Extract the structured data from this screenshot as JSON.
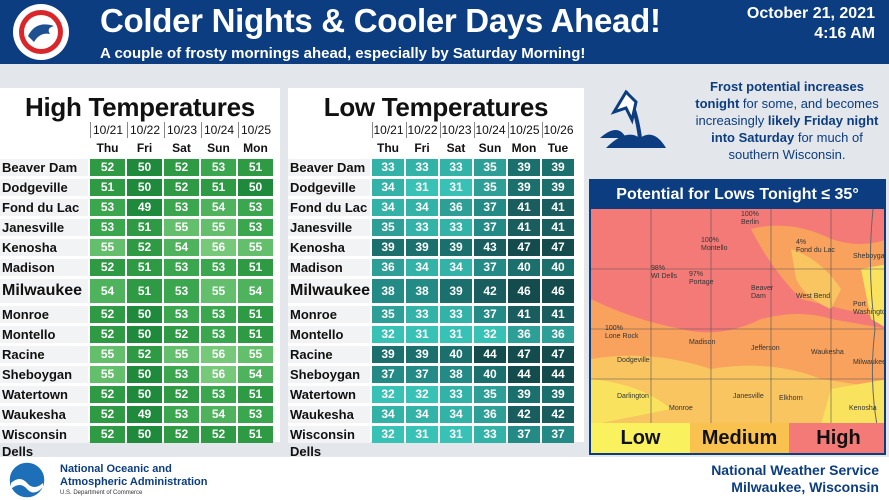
{
  "header": {
    "title": "Colder Nights & Cooler Days Ahead!",
    "subtitle": "A couple of frosty mornings ahead, especially by Saturday Morning!",
    "date": "October 21, 2021",
    "time": "4:16 AM",
    "logo_text": "NATIONAL WEATHER SERVICE"
  },
  "high": {
    "title": "High Temperatures",
    "dates": [
      "10/21",
      "10/22",
      "10/23",
      "10/24",
      "10/25"
    ],
    "days": [
      "Thu",
      "Fri",
      "Sat",
      "Sun",
      "Mon"
    ],
    "rows": [
      {
        "city": "Beaver Dam",
        "v": [
          52,
          50,
          52,
          53,
          51
        ]
      },
      {
        "city": "Dodgeville",
        "v": [
          51,
          50,
          52,
          51,
          50
        ]
      },
      {
        "city": "Fond du Lac",
        "v": [
          53,
          49,
          53,
          54,
          53
        ]
      },
      {
        "city": "Janesville",
        "v": [
          53,
          51,
          55,
          55,
          53
        ]
      },
      {
        "city": "Kenosha",
        "v": [
          55,
          52,
          54,
          56,
          55
        ]
      },
      {
        "city": "Madison",
        "v": [
          52,
          51,
          53,
          53,
          51
        ]
      },
      {
        "city": "Milwaukee",
        "v": [
          54,
          51,
          53,
          55,
          54
        ]
      },
      {
        "city": "Monroe",
        "v": [
          52,
          50,
          53,
          53,
          51
        ]
      },
      {
        "city": "Montello",
        "v": [
          52,
          50,
          52,
          53,
          51
        ]
      },
      {
        "city": "Racine",
        "v": [
          55,
          52,
          55,
          56,
          55
        ]
      },
      {
        "city": "Sheboygan",
        "v": [
          55,
          50,
          53,
          56,
          54
        ]
      },
      {
        "city": "Watertown",
        "v": [
          52,
          50,
          52,
          53,
          51
        ]
      },
      {
        "city": "Waukesha",
        "v": [
          52,
          49,
          53,
          54,
          53
        ]
      },
      {
        "city": "Wisconsin Dells",
        "v": [
          52,
          50,
          52,
          52,
          51
        ]
      }
    ]
  },
  "low": {
    "title": "Low Temperatures",
    "dates": [
      "10/21",
      "10/22",
      "10/23",
      "10/24",
      "10/25",
      "10/26"
    ],
    "days": [
      "Thu",
      "Fri",
      "Sat",
      "Sun",
      "Mon",
      "Tue"
    ],
    "rows": [
      {
        "city": "Beaver Dam",
        "v": [
          33,
          33,
          33,
          35,
          39,
          39
        ]
      },
      {
        "city": "Dodgeville",
        "v": [
          34,
          31,
          31,
          35,
          39,
          39
        ]
      },
      {
        "city": "Fond du Lac",
        "v": [
          34,
          34,
          36,
          37,
          41,
          41
        ]
      },
      {
        "city": "Janesville",
        "v": [
          35,
          33,
          33,
          37,
          41,
          41
        ]
      },
      {
        "city": "Kenosha",
        "v": [
          39,
          39,
          39,
          43,
          47,
          47
        ]
      },
      {
        "city": "Madison",
        "v": [
          36,
          34,
          34,
          37,
          40,
          40
        ]
      },
      {
        "city": "Milwaukee",
        "v": [
          38,
          38,
          39,
          42,
          46,
          46
        ]
      },
      {
        "city": "Monroe",
        "v": [
          35,
          33,
          33,
          37,
          41,
          41
        ]
      },
      {
        "city": "Montello",
        "v": [
          32,
          31,
          31,
          32,
          36,
          36
        ]
      },
      {
        "city": "Racine",
        "v": [
          39,
          39,
          40,
          44,
          47,
          47
        ]
      },
      {
        "city": "Sheboygan",
        "v": [
          37,
          37,
          38,
          40,
          44,
          44
        ]
      },
      {
        "city": "Watertown",
        "v": [
          32,
          32,
          33,
          35,
          39,
          39
        ]
      },
      {
        "city": "Waukesha",
        "v": [
          34,
          34,
          34,
          36,
          42,
          42
        ]
      },
      {
        "city": "Wisconsin Dells",
        "v": [
          32,
          31,
          31,
          33,
          37,
          37
        ]
      }
    ]
  },
  "frost": {
    "p1": "Frost potential increases",
    "p2": "tonight",
    "p3": " for some, and becomes increasingly ",
    "p4": "likely Friday night into Saturday",
    "p5": " for much of southern Wisconsin."
  },
  "map": {
    "title": "Potential for Lows Tonight ≤ 35°",
    "legend": [
      "Low",
      "Medium",
      "High"
    ],
    "labels": [
      {
        "t": "100%\nBerlin"
      },
      {
        "t": "100%\nMontello"
      },
      {
        "t": "4%\nFond du Lac"
      },
      {
        "t": "Sheboygan"
      },
      {
        "t": "98%\nWI Dells"
      },
      {
        "t": "97%\nPortage"
      },
      {
        "t": "Beaver\nDam"
      },
      {
        "t": "West Bend"
      },
      {
        "t": "Port\nWashington"
      },
      {
        "t": "100%\nLone Rock"
      },
      {
        "t": "Madison"
      },
      {
        "t": "Jefferson"
      },
      {
        "t": "Waukesha"
      },
      {
        "t": "Milwaukee"
      },
      {
        "t": "Dodgeville"
      },
      {
        "t": "Darlington"
      },
      {
        "t": "Monroe"
      },
      {
        "t": "Janesville"
      },
      {
        "t": "Elkhorn"
      },
      {
        "t": "Kenosha"
      }
    ]
  },
  "footer": {
    "org": "National Oceanic and\nAtmospheric Administration",
    "dept": "U.S. Department of Commerce",
    "nws1": "National Weather Service",
    "nws2": "Milwaukee, Wisconsin"
  }
}
